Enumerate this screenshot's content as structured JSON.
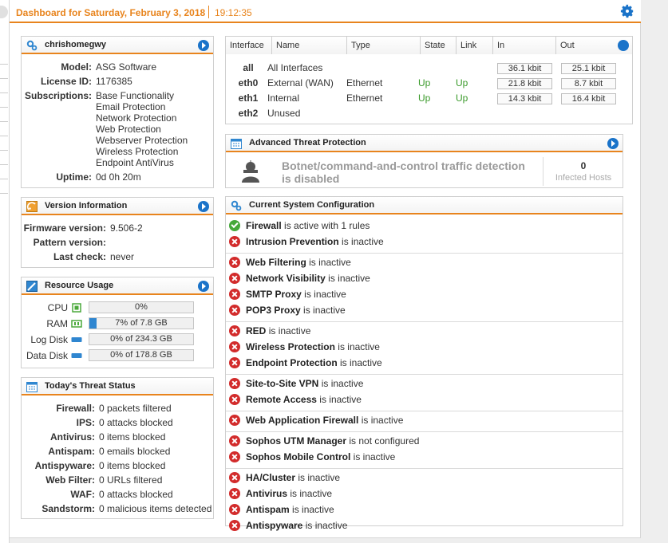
{
  "header": {
    "title": "Dashboard for Saturday, February 3, 2018",
    "time": "19:12:35",
    "settings_icon": "gear-icon",
    "accent": "#e8841d"
  },
  "system": {
    "title": "chrishomegwy",
    "model_label": "Model:",
    "model": "ASG Software",
    "license_label": "License ID:",
    "license": "1176385",
    "subs_label": "Subscriptions:",
    "subscriptions": [
      "Base Functionality",
      "Email Protection",
      "Network Protection",
      "Web Protection",
      "Webserver Protection",
      "Wireless Protection",
      "Endpoint AntiVirus"
    ],
    "uptime_label": "Uptime:",
    "uptime": "0d 0h 20m"
  },
  "version": {
    "title": "Version Information",
    "fw_label": "Firmware version:",
    "fw": "9.506-2",
    "pattern_label": "Pattern version:",
    "pattern": "",
    "check_label": "Last check:",
    "check": "never"
  },
  "resources": {
    "title": "Resource Usage",
    "rows": [
      {
        "label": "CPU",
        "value": "0%",
        "pct": 0
      },
      {
        "label": "RAM",
        "value": "7% of 7.8 GB",
        "pct": 7
      },
      {
        "label": "Log Disk",
        "value": "0% of 234.3 GB",
        "pct": 0
      },
      {
        "label": "Data Disk",
        "value": "0% of 178.8 GB",
        "pct": 0
      }
    ]
  },
  "threats": {
    "title": "Today's Threat Status",
    "rows": [
      {
        "k": "Firewall:",
        "v": "0 packets filtered"
      },
      {
        "k": "IPS:",
        "v": "0 attacks blocked"
      },
      {
        "k": "Antivirus:",
        "v": "0 items blocked"
      },
      {
        "k": "Antispam:",
        "v": "0 emails blocked"
      },
      {
        "k": "Antispyware:",
        "v": "0 items blocked"
      },
      {
        "k": "Web Filter:",
        "v": "0 URLs filtered"
      },
      {
        "k": "WAF:",
        "v": "0 attacks blocked"
      },
      {
        "k": "Sandstorm:",
        "v": "0 malicious items detected"
      }
    ]
  },
  "interfaces": {
    "headers": {
      "iface": "Interface",
      "name": "Name",
      "type": "Type",
      "state": "State",
      "link": "Link",
      "in": "In",
      "out": "Out"
    },
    "rows": [
      {
        "iface": "all",
        "name": "All Interfaces",
        "type": "",
        "state": "",
        "link": "",
        "in": "36.1 kbit",
        "out": "25.1 kbit"
      },
      {
        "iface": "eth0",
        "name": "External (WAN)",
        "type": "Ethernet",
        "state": "Up",
        "link": "Up",
        "in": "21.8 kbit",
        "out": "8.7 kbit"
      },
      {
        "iface": "eth1",
        "name": "Internal",
        "type": "Ethernet",
        "state": "Up",
        "link": "Up",
        "in": "14.3 kbit",
        "out": "16.4 kbit"
      },
      {
        "iface": "eth2",
        "name": "Unused",
        "type": "",
        "state": "",
        "link": "",
        "in": "",
        "out": ""
      }
    ]
  },
  "atp": {
    "title": "Advanced Threat Protection",
    "message": "Botnet/command-and-control traffic detection is disabled",
    "count": "0",
    "count_label": "Infected Hosts"
  },
  "config": {
    "title": "Current System Configuration",
    "groups": [
      [
        {
          "name": "Firewall",
          "status": "is active with 1 rules",
          "ok": true
        },
        {
          "name": "Intrusion Prevention",
          "status": "is inactive",
          "ok": false
        }
      ],
      [
        {
          "name": "Web Filtering",
          "status": "is inactive",
          "ok": false
        },
        {
          "name": "Network Visibility",
          "status": "is inactive",
          "ok": false
        },
        {
          "name": "SMTP Proxy",
          "status": "is inactive",
          "ok": false
        },
        {
          "name": "POP3 Proxy",
          "status": "is inactive",
          "ok": false
        }
      ],
      [
        {
          "name": "RED",
          "status": "is inactive",
          "ok": false
        },
        {
          "name": "Wireless Protection",
          "status": "is inactive",
          "ok": false
        },
        {
          "name": "Endpoint Protection",
          "status": "is inactive",
          "ok": false
        }
      ],
      [
        {
          "name": "Site-to-Site VPN",
          "status": "is inactive",
          "ok": false
        },
        {
          "name": "Remote Access",
          "status": "is inactive",
          "ok": false
        }
      ],
      [
        {
          "name": "Web Application Firewall",
          "status": "is inactive",
          "ok": false
        }
      ],
      [
        {
          "name": "Sophos UTM Manager",
          "status": "is not configured",
          "ok": false
        },
        {
          "name": "Sophos Mobile Control",
          "status": "is inactive",
          "ok": false
        }
      ],
      [
        {
          "name": "HA/Cluster",
          "status": "is inactive",
          "ok": false
        },
        {
          "name": "Antivirus",
          "status": "is inactive",
          "ok": false
        },
        {
          "name": "Antispam",
          "status": "is inactive",
          "ok": false
        },
        {
          "name": "Antispyware",
          "status": "is inactive",
          "ok": false
        }
      ]
    ]
  }
}
